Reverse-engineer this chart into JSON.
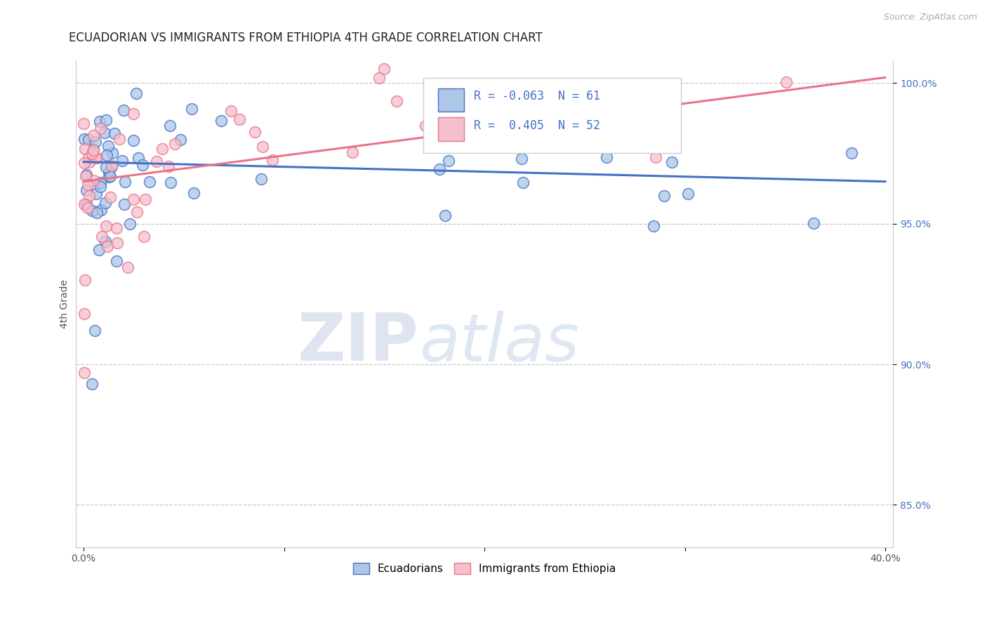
{
  "title": "ECUADORIAN VS IMMIGRANTS FROM ETHIOPIA 4TH GRADE CORRELATION CHART",
  "source_text": "Source: ZipAtlas.com",
  "ylabel": "4th Grade",
  "x_min": 0.0,
  "x_max": 0.4,
  "y_min": 0.835,
  "y_max": 1.008,
  "x_ticks": [
    0.0,
    0.1,
    0.2,
    0.3,
    0.4
  ],
  "x_tick_labels": [
    "0.0%",
    "",
    "",
    "",
    "40.0%"
  ],
  "y_ticks": [
    0.85,
    0.9,
    0.95,
    1.0
  ],
  "y_tick_labels": [
    "85.0%",
    "90.0%",
    "95.0%",
    "100.0%"
  ],
  "legend_labels": [
    "Ecuadorians",
    "Immigrants from Ethiopia"
  ],
  "R_blue": -0.063,
  "N_blue": 61,
  "R_pink": 0.405,
  "N_pink": 52,
  "color_blue": "#aec6e8",
  "color_pink": "#f5bfcc",
  "line_color_blue": "#4472c4",
  "line_color_pink": "#e8748a",
  "blue_trendline_y0": 0.972,
  "blue_trendline_y1": 0.965,
  "pink_trendline_y0": 0.965,
  "pink_trendline_y1": 1.002,
  "watermark_zip": "ZIP",
  "watermark_atlas": "atlas",
  "background_color": "#ffffff",
  "grid_color": "#c8c8c8",
  "title_fontsize": 12,
  "axis_label_fontsize": 10,
  "tick_fontsize": 10,
  "legend_fontsize": 12
}
